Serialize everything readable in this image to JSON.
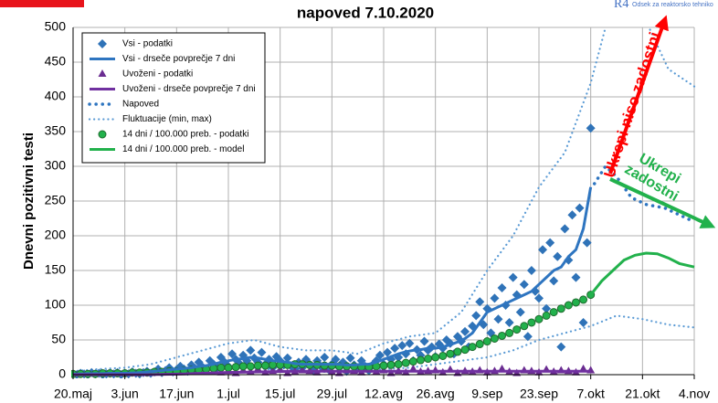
{
  "chart_data": {
    "type": "mixed",
    "title": "napoved 7.10.2020",
    "logo": {
      "mark": "R4",
      "text": "Odsek za reaktorsko tehniko"
    },
    "y_label": "Dnevni pozitivni testi",
    "xlim": [
      0,
      168
    ],
    "ylim": [
      0,
      500
    ],
    "yticks": [
      0,
      50,
      100,
      150,
      200,
      250,
      300,
      350,
      400,
      450,
      500
    ],
    "xticks": [
      {
        "value": 0,
        "label": "20.maj"
      },
      {
        "value": 14,
        "label": "3.jun"
      },
      {
        "value": 28,
        "label": "17.jun"
      },
      {
        "value": 42,
        "label": "1.jul"
      },
      {
        "value": 56,
        "label": "15.jul"
      },
      {
        "value": 70,
        "label": "29.jul"
      },
      {
        "value": 84,
        "label": "12.avg"
      },
      {
        "value": 98,
        "label": "26.avg"
      },
      {
        "value": 112,
        "label": "9.sep"
      },
      {
        "value": 126,
        "label": "23.sep"
      },
      {
        "value": 140,
        "label": "7.okt"
      },
      {
        "value": 154,
        "label": "21.okt"
      },
      {
        "value": 168,
        "label": "4.nov"
      }
    ],
    "grid": true,
    "legend": "upper left",
    "series": [
      {
        "name": "Vsi - podatki",
        "color": "#2f73b8",
        "style": "markers",
        "marker": "diamond",
        "x": [
          0,
          1,
          2,
          3,
          4,
          5,
          6,
          7,
          8,
          9,
          10,
          11,
          12,
          13,
          14,
          15,
          16,
          17,
          18,
          19,
          20,
          21,
          22,
          23,
          24,
          25,
          26,
          27,
          28,
          29,
          30,
          31,
          32,
          33,
          34,
          35,
          36,
          37,
          38,
          39,
          40,
          41,
          42,
          43,
          44,
          45,
          46,
          47,
          48,
          49,
          50,
          51,
          52,
          53,
          54,
          55,
          56,
          57,
          58,
          59,
          60,
          61,
          62,
          63,
          64,
          65,
          66,
          67,
          68,
          69,
          70,
          71,
          72,
          73,
          74,
          75,
          76,
          77,
          78,
          79,
          80,
          81,
          82,
          83,
          84,
          85,
          86,
          87,
          88,
          89,
          90,
          91,
          92,
          93,
          94,
          95,
          96,
          97,
          98,
          99,
          100,
          101,
          102,
          103,
          104,
          105,
          106,
          107,
          108,
          109,
          110,
          111,
          112,
          113,
          114,
          115,
          116,
          117,
          118,
          119,
          120,
          121,
          122,
          123,
          124,
          125,
          126,
          127,
          128,
          129,
          130,
          131,
          132,
          133,
          134,
          135,
          136,
          137,
          138,
          139,
          140
        ],
        "values": [
          1,
          0,
          2,
          1,
          0,
          3,
          1,
          2,
          0,
          1,
          2,
          1,
          3,
          0,
          2,
          1,
          4,
          2,
          1,
          3,
          5,
          2,
          4,
          8,
          3,
          6,
          10,
          4,
          7,
          12,
          8,
          5,
          14,
          9,
          18,
          11,
          7,
          20,
          15,
          10,
          25,
          18,
          12,
          30,
          22,
          16,
          28,
          20,
          35,
          24,
          18,
          32,
          15,
          22,
          10,
          26,
          20,
          14,
          24,
          12,
          8,
          18,
          10,
          22,
          15,
          6,
          20,
          12,
          25,
          8,
          15,
          22,
          10,
          18,
          5,
          24,
          14,
          9,
          20,
          12,
          6,
          14,
          20,
          28,
          15,
          32,
          22,
          38,
          25,
          42,
          30,
          45,
          20,
          36,
          28,
          48,
          35,
          40,
          26,
          44,
          38,
          50,
          45,
          30,
          55,
          48,
          62,
          40,
          70,
          85,
          105,
          72,
          95,
          60,
          110,
          80,
          125,
          100,
          75,
          140,
          115,
          90,
          130,
          55,
          150,
          120,
          110,
          180,
          95,
          190,
          135,
          170,
          40,
          210,
          165,
          230,
          140,
          240,
          75,
          190,
          355
        ]
      },
      {
        "name": "Vsi - drseče povprečje 7 dni",
        "color": "#2e75c0",
        "style": "line",
        "x": [
          0,
          2,
          4,
          6,
          8,
          10,
          12,
          14,
          16,
          18,
          20,
          22,
          24,
          26,
          28,
          30,
          32,
          34,
          36,
          38,
          40,
          42,
          44,
          46,
          48,
          50,
          52,
          54,
          56,
          58,
          60,
          62,
          64,
          66,
          68,
          70,
          72,
          74,
          76,
          78,
          80,
          82,
          84,
          86,
          88,
          90,
          92,
          94,
          96,
          98,
          100,
          102,
          104,
          106,
          108,
          110,
          112,
          114,
          116,
          118,
          120,
          122,
          124,
          126,
          128,
          130,
          132,
          134,
          136,
          138,
          140
        ],
        "values": [
          1,
          1,
          1.5,
          1.5,
          1.5,
          2,
          2,
          2,
          2.5,
          3,
          4,
          5,
          6,
          7,
          8,
          9,
          10,
          12,
          13,
          15,
          18,
          20,
          22,
          23,
          25,
          24,
          22,
          20,
          19,
          18,
          16,
          15,
          15,
          15,
          15,
          15,
          15,
          14,
          14,
          15,
          15,
          18,
          22,
          26,
          30,
          33,
          35,
          36,
          38,
          38,
          40,
          43,
          47,
          52,
          60,
          75,
          90,
          95,
          100,
          105,
          110,
          115,
          120,
          130,
          140,
          150,
          155,
          170,
          180,
          210,
          270
        ]
      },
      {
        "name": "Uvoženi - podatki",
        "color": "#6a2c91",
        "style": "markers",
        "marker": "triangle",
        "x": [
          40,
          42,
          44,
          46,
          48,
          50,
          52,
          54,
          56,
          58,
          60,
          62,
          64,
          66,
          68,
          70,
          72,
          74,
          76,
          78,
          80,
          82,
          84,
          86,
          88,
          90,
          92,
          94,
          96,
          98,
          100,
          102,
          104,
          106,
          108,
          110,
          112,
          114,
          116,
          118,
          120,
          122,
          124,
          126,
          128,
          130,
          132,
          134,
          136,
          138,
          140
        ],
        "values": [
          3,
          5,
          2,
          6,
          4,
          8,
          3,
          5,
          7,
          2,
          4,
          6,
          5,
          3,
          8,
          4,
          2,
          6,
          5,
          3,
          7,
          4,
          6,
          2,
          5,
          3,
          8,
          4,
          5,
          6,
          3,
          7,
          2,
          5,
          4,
          6,
          3,
          5,
          8,
          4,
          2,
          6,
          5,
          3,
          7,
          4,
          6,
          5,
          3,
          8,
          6
        ]
      },
      {
        "name": "Uvoženi - drseče povprečje 7 dni",
        "color": "#7030a0",
        "style": "line",
        "x": [
          0,
          10,
          20,
          30,
          40,
          50,
          60,
          70,
          80,
          90,
          100,
          110,
          120,
          130,
          140
        ],
        "values": [
          0,
          0,
          0,
          1,
          3,
          4,
          5,
          5,
          5,
          5,
          5,
          5,
          5,
          5,
          5
        ]
      },
      {
        "name": "Napoved",
        "color": "#2e75c0",
        "style": "dotted",
        "x": [
          141,
          144,
          147,
          151,
          155,
          160,
          164,
          168
        ],
        "values": [
          275,
          300,
          285,
          255,
          245,
          240,
          230,
          220
        ]
      },
      {
        "name": "Fluktuacije (min, max)",
        "color": "#5b9bd5",
        "style": "band-lines",
        "x": [
          0,
          7,
          14,
          21,
          28,
          35,
          42,
          49,
          56,
          63,
          70,
          77,
          84,
          91,
          98,
          105,
          112,
          119,
          126,
          133,
          140,
          147,
          154,
          161,
          168
        ],
        "low": [
          0,
          0,
          0,
          0,
          2,
          5,
          8,
          10,
          6,
          4,
          4,
          4,
          8,
          10,
          15,
          20,
          25,
          35,
          50,
          60,
          70,
          85,
          80,
          72,
          68
        ],
        "high": [
          5,
          8,
          10,
          15,
          25,
          35,
          45,
          50,
          40,
          35,
          35,
          30,
          45,
          55,
          60,
          90,
          150,
          200,
          270,
          320,
          420,
          560,
          520,
          440,
          415
        ]
      },
      {
        "name": "14 dni / 100.000 preb. - podatki",
        "color": "#22b14c",
        "style": "markers",
        "marker": "circle",
        "x": [
          0,
          2,
          4,
          6,
          8,
          10,
          12,
          14,
          16,
          18,
          20,
          22,
          24,
          26,
          28,
          30,
          32,
          34,
          36,
          38,
          40,
          42,
          44,
          46,
          48,
          50,
          52,
          54,
          56,
          58,
          60,
          62,
          64,
          66,
          68,
          70,
          72,
          74,
          76,
          78,
          80,
          82,
          84,
          86,
          88,
          90,
          92,
          94,
          96,
          98,
          100,
          102,
          104,
          106,
          108,
          110,
          112,
          114,
          116,
          118,
          120,
          122,
          124,
          126,
          128,
          130,
          132,
          134,
          136,
          138,
          140
        ],
        "values": [
          1,
          1,
          1,
          1,
          2,
          2,
          2,
          2,
          3,
          3,
          3,
          4,
          4,
          5,
          5,
          6,
          7,
          7,
          8,
          9,
          10,
          10,
          11,
          12,
          12,
          13,
          13,
          14,
          14,
          14,
          15,
          15,
          14,
          14,
          13,
          13,
          12,
          12,
          12,
          11,
          11,
          12,
          13,
          14,
          15,
          17,
          19,
          21,
          23,
          25,
          27,
          30,
          33,
          36,
          40,
          44,
          48,
          52,
          56,
          60,
          65,
          70,
          75,
          80,
          85,
          90,
          95,
          100,
          104,
          108,
          115
        ]
      },
      {
        "name": "14 dni / 100.000 preb. - model",
        "color": "#22b14c",
        "style": "line",
        "x": [
          140,
          143,
          146,
          149,
          152,
          155,
          158,
          161,
          164,
          168
        ],
        "values": [
          115,
          135,
          150,
          165,
          172,
          175,
          174,
          168,
          160,
          155
        ]
      }
    ],
    "annotations": [
      {
        "lines": [
          "Ukrepi niso zadostni"
        ],
        "color": "#ff0000"
      },
      {
        "lines": [
          "Ukrepi",
          "zadostni"
        ],
        "color": "#22b14c"
      }
    ]
  }
}
